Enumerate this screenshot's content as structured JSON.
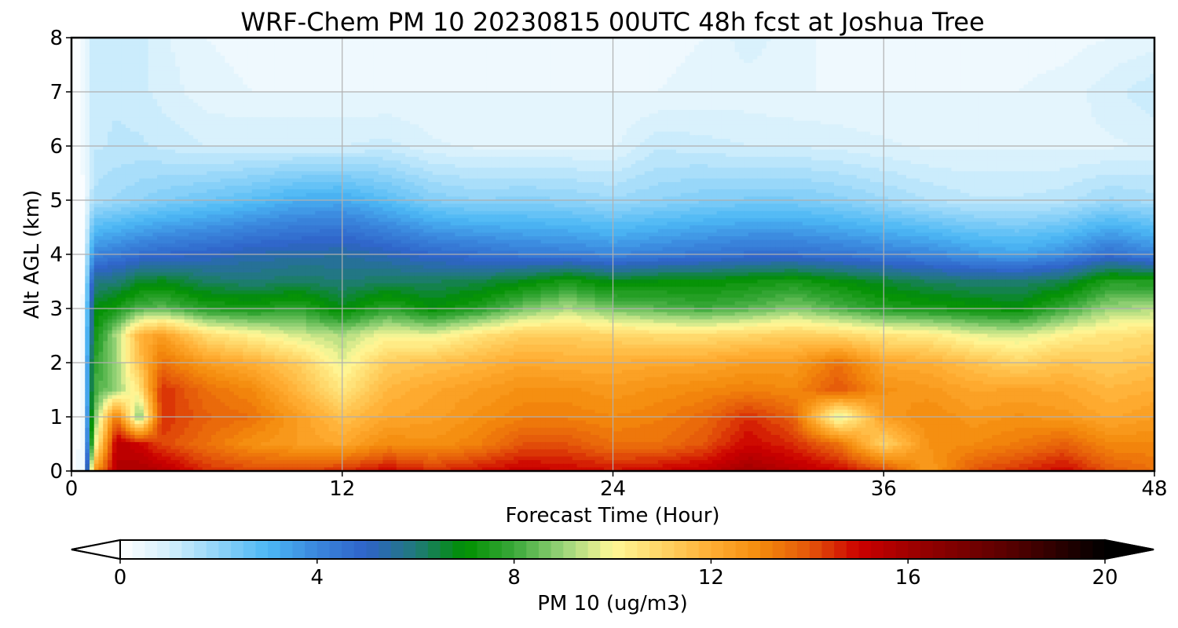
{
  "chart_data": {
    "type": "heatmap",
    "title": "WRF-Chem PM 10  20230815 00UTC 48h fcst at Joshua Tree",
    "xlabel": "Forecast Time (Hour)",
    "ylabel": "Alt AGL (km)",
    "xlim": [
      0,
      48
    ],
    "ylim": [
      0,
      8
    ],
    "x_ticks": [
      "0",
      "12",
      "24",
      "36",
      "48"
    ],
    "y_ticks": [
      "0",
      "1",
      "2",
      "3",
      "4",
      "5",
      "6",
      "7",
      "8"
    ],
    "grid": true,
    "colorbar": {
      "label": "PM 10  (ug/m3)",
      "range": [
        0,
        20
      ],
      "ticks": [
        "0",
        "4",
        "8",
        "12",
        "16",
        "20"
      ],
      "extend": "both",
      "colors": [
        {
          "value": 0,
          "color": "#ffffff"
        },
        {
          "value": 1,
          "color": "#d4effc"
        },
        {
          "value": 2,
          "color": "#8fd3f8"
        },
        {
          "value": 3,
          "color": "#4cb8f5"
        },
        {
          "value": 4,
          "color": "#3a86dd"
        },
        {
          "value": 5,
          "color": "#2f63c8"
        },
        {
          "value": 6,
          "color": "#207a7a"
        },
        {
          "value": 7,
          "color": "#009000"
        },
        {
          "value": 8,
          "color": "#3aa83a"
        },
        {
          "value": 9,
          "color": "#9ad47a"
        },
        {
          "value": 10,
          "color": "#fff898"
        },
        {
          "value": 11,
          "color": "#ffd566"
        },
        {
          "value": 12,
          "color": "#ffae34"
        },
        {
          "value": 13,
          "color": "#f48a0c"
        },
        {
          "value": 14,
          "color": "#e4560a"
        },
        {
          "value": 15,
          "color": "#cc0000"
        },
        {
          "value": 16,
          "color": "#a00000"
        },
        {
          "value": 18,
          "color": "#5a0000"
        },
        {
          "value": 20,
          "color": "#000000"
        }
      ]
    },
    "x": [
      0,
      0.5,
      1,
      2,
      3,
      4,
      6,
      8,
      10,
      12,
      14,
      16,
      18,
      20,
      22,
      24,
      26,
      28,
      30,
      32,
      34,
      36,
      38,
      40,
      42,
      44,
      46,
      48
    ],
    "y": [
      0,
      0.5,
      1,
      1.5,
      2,
      2.5,
      3,
      3.5,
      4,
      5,
      6,
      7,
      8
    ],
    "z": [
      [
        0,
        0.5,
        12.5,
        15.5,
        15.8,
        15.5,
        14.5,
        14.2,
        14.2,
        14.5,
        15,
        14.5,
        14.8,
        15.2,
        15,
        14.8,
        15,
        15.3,
        16,
        15.5,
        15,
        14.2,
        12.5,
        14,
        14.5,
        15,
        14,
        13.5
      ],
      [
        0,
        0.4,
        9.5,
        15.5,
        15,
        14.2,
        13.5,
        12.8,
        12.5,
        12.2,
        13,
        12.8,
        13.2,
        14,
        14,
        13.5,
        13.5,
        14,
        15,
        14.5,
        13.5,
        11,
        12.8,
        13,
        13.3,
        13.8,
        13,
        13
      ],
      [
        0,
        0.3,
        8.5,
        13.5,
        8.5,
        14.5,
        13.8,
        13.5,
        12.5,
        11.5,
        12.2,
        12.4,
        12.8,
        13.2,
        13.2,
        13,
        13.2,
        13.6,
        14.5,
        13.8,
        9.5,
        12.5,
        13,
        12.6,
        12.8,
        12.6,
        12.2,
        12.5
      ],
      [
        0,
        0.3,
        8,
        9,
        10.5,
        14.5,
        13.5,
        13,
        11.8,
        10.5,
        11.8,
        12.2,
        12.5,
        12.8,
        12.8,
        12.6,
        12.8,
        13,
        13.2,
        13,
        14,
        12.8,
        12.6,
        12.2,
        12.3,
        12.2,
        11.8,
        12
      ],
      [
        0,
        0.3,
        7.8,
        9,
        11.5,
        13.5,
        12.5,
        12,
        11.2,
        9.8,
        11.2,
        11.5,
        11.8,
        12.2,
        12,
        12,
        12.2,
        12.2,
        12.5,
        12.5,
        13.5,
        12.2,
        12,
        11.5,
        11,
        11.5,
        11.2,
        11.5
      ],
      [
        0,
        0.3,
        7.2,
        9.2,
        11.8,
        12.5,
        10.8,
        10.2,
        9.6,
        9.2,
        10,
        9.8,
        10.6,
        11.2,
        11.2,
        11,
        10.8,
        10.8,
        11,
        11.2,
        11,
        10.6,
        10.4,
        9.8,
        9.6,
        10.2,
        10.6,
        10.8
      ],
      [
        0,
        0.3,
        6.8,
        7.4,
        8.2,
        8.4,
        7.6,
        7.4,
        7.8,
        6.8,
        7.8,
        7,
        7.6,
        8.6,
        9.2,
        8.6,
        8.3,
        8,
        8.3,
        8.8,
        8.2,
        7.6,
        7.4,
        7.2,
        7,
        8,
        9,
        9.2
      ],
      [
        0,
        0.2,
        5.8,
        6,
        6.6,
        6.8,
        6.2,
        6,
        6.2,
        6,
        6.2,
        6.2,
        6.4,
        6.8,
        7.4,
        6.8,
        7,
        7,
        7.2,
        7.4,
        7,
        6.6,
        6.2,
        6,
        6,
        6.4,
        7.6,
        7.5
      ],
      [
        0,
        0.2,
        4,
        4.3,
        4.6,
        4.8,
        5,
        5.3,
        5.4,
        5.5,
        5.2,
        4.8,
        4.6,
        4.3,
        4.2,
        4,
        4.2,
        4.4,
        4.6,
        4.6,
        4.4,
        4.2,
        4,
        3.6,
        3.4,
        3.8,
        4.6,
        4
      ],
      [
        0,
        0.2,
        1.6,
        1.8,
        2,
        2.2,
        2.5,
        2.8,
        3.2,
        3.3,
        2.8,
        2.2,
        2,
        2.1,
        2,
        1.8,
        2,
        2.2,
        2.3,
        2.3,
        2.1,
        1.8,
        1.5,
        1.3,
        1.3,
        1.4,
        1.8,
        1.6
      ],
      [
        0,
        0.3,
        1.2,
        1.3,
        1.3,
        1.2,
        1,
        1,
        1,
        1,
        1.1,
        0.8,
        0.7,
        0.7,
        0.7,
        0.7,
        1.2,
        1.1,
        1,
        1,
        0.9,
        0.8,
        0.7,
        0.7,
        0.7,
        0.7,
        0.7,
        0.8
      ],
      [
        0,
        0.3,
        1.2,
        1.2,
        1.1,
        0.9,
        0.6,
        0.5,
        0.5,
        0.5,
        0.5,
        0.5,
        0.5,
        0.5,
        0.5,
        0.5,
        0.5,
        0.6,
        0.6,
        0.5,
        0.5,
        0.5,
        0.5,
        0.5,
        0.5,
        0.6,
        0.9,
        1.2
      ],
      [
        0,
        0.4,
        1.2,
        1.2,
        1.1,
        0.8,
        0.5,
        0.4,
        0.4,
        0.4,
        0.4,
        0.4,
        0.4,
        0.4,
        0.4,
        0.4,
        0.4,
        0.5,
        0.9,
        0.6,
        0.4,
        0.4,
        0.4,
        0.4,
        0.4,
        0.4,
        0.5,
        0.6
      ]
    ]
  }
}
